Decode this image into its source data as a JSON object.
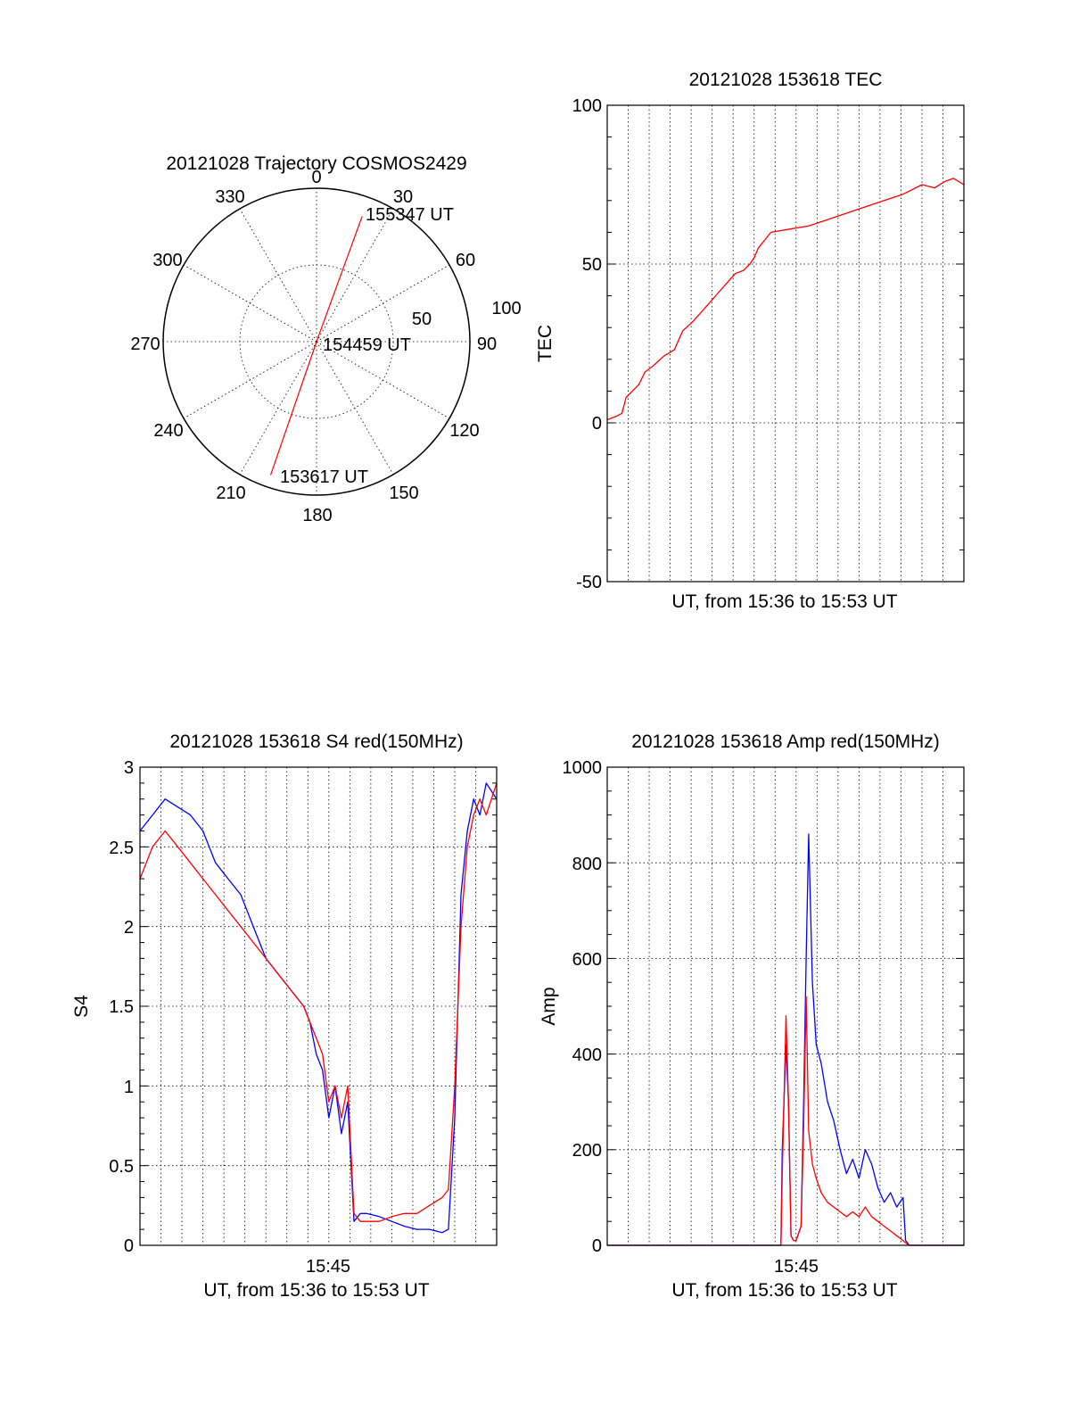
{
  "page": {
    "background": "#ffffff"
  },
  "chart_data": [
    {
      "type": "polar",
      "title": "20121028 Trajectory COSMOS2429",
      "azimuth_ticks": [
        "0",
        "30",
        "60",
        "90",
        "120",
        "150",
        "180",
        "210",
        "240",
        "270",
        "300",
        "330"
      ],
      "radial_ticks": [
        "50",
        "100"
      ],
      "radial_range": [
        0,
        100
      ],
      "grid": true,
      "series": [
        {
          "color": "#ff0000",
          "points": [
            {
              "azimuth": 199,
              "zenith": 92
            },
            {
              "azimuth": 19,
              "zenith": 0
            },
            {
              "azimuth": 20,
              "zenith": 87
            }
          ]
        }
      ],
      "annotations": [
        "155347 UT",
        "154459 UT",
        "153617 UT"
      ]
    },
    {
      "type": "line",
      "title": "20121028 153618 TEC",
      "ylabel": "TEC",
      "xlabel": "UT, from 15:36 to 15:53 UT",
      "xlim": [
        15.6,
        15.8833
      ],
      "ylim": [
        -50,
        100
      ],
      "yticks": [
        "-50",
        "0",
        "50",
        "100"
      ],
      "xticks": [],
      "grid": true,
      "series": [
        {
          "color": "#ff0000",
          "x": [
            15.6003,
            15.6067,
            15.6117,
            15.615,
            15.62,
            15.625,
            15.63,
            15.6367,
            15.645,
            15.6533,
            15.66,
            15.6683,
            15.675,
            15.6817,
            15.6883,
            15.695,
            15.7017,
            15.7083,
            15.7133,
            15.7167,
            15.72,
            15.73,
            15.745,
            15.76,
            15.775,
            15.79,
            15.805,
            15.82,
            15.835,
            15.85,
            15.86,
            15.8683,
            15.875,
            15.8833
          ],
          "values": [
            1,
            2,
            3,
            8,
            10,
            12,
            16,
            18,
            21,
            23,
            29,
            32,
            35,
            38,
            41,
            44,
            47,
            48,
            50,
            52,
            55,
            60,
            61,
            62,
            64,
            66,
            68,
            70,
            72,
            75,
            74,
            76,
            77,
            75
          ]
        }
      ]
    },
    {
      "type": "line",
      "title": "20121028 153618 S4 red(150MHz)",
      "ylabel": "S4",
      "xlabel": "UT, from 15:36 to 15:53 UT",
      "xlim": [
        15.6,
        15.8833
      ],
      "ylim": [
        0,
        3
      ],
      "yticks": [
        "0",
        "0.5",
        "1",
        "1.5",
        "2",
        "2.5",
        "3"
      ],
      "xticks": [
        {
          "x": 15.75,
          "label": "15:45"
        }
      ],
      "grid": true,
      "series": [
        {
          "color": "#0000ff",
          "x": [
            15.6,
            15.61,
            15.62,
            15.63,
            15.64,
            15.65,
            15.66,
            15.67,
            15.68,
            15.69,
            15.7,
            15.71,
            15.72,
            15.73,
            15.735,
            15.74,
            15.745,
            15.75,
            15.755,
            15.76,
            15.765,
            15.77,
            15.775,
            15.78,
            15.79,
            15.8,
            15.81,
            15.82,
            15.83,
            15.84,
            15.845,
            15.85,
            15.855,
            15.86,
            15.865,
            15.87,
            15.875,
            15.8833
          ],
          "values": [
            2.6,
            2.7,
            2.8,
            2.75,
            2.7,
            2.6,
            2.4,
            2.3,
            2.2,
            2.0,
            1.8,
            1.7,
            1.6,
            1.5,
            1.4,
            1.2,
            1.1,
            0.8,
            1.0,
            0.7,
            0.9,
            0.15,
            0.2,
            0.2,
            0.18,
            0.15,
            0.12,
            0.1,
            0.1,
            0.08,
            0.1,
            0.8,
            2.2,
            2.6,
            2.8,
            2.7,
            2.9,
            2.8
          ]
        },
        {
          "color": "#ff0000",
          "x": [
            15.6,
            15.61,
            15.62,
            15.63,
            15.64,
            15.65,
            15.66,
            15.67,
            15.68,
            15.69,
            15.7,
            15.71,
            15.72,
            15.73,
            15.735,
            15.74,
            15.745,
            15.75,
            15.755,
            15.76,
            15.765,
            15.77,
            15.775,
            15.78,
            15.79,
            15.8,
            15.81,
            15.82,
            15.83,
            15.84,
            15.845,
            15.85,
            15.855,
            15.86,
            15.865,
            15.87,
            15.875,
            15.8833
          ],
          "values": [
            2.3,
            2.5,
            2.6,
            2.5,
            2.4,
            2.3,
            2.2,
            2.1,
            2.0,
            1.9,
            1.8,
            1.7,
            1.6,
            1.5,
            1.4,
            1.3,
            1.2,
            0.9,
            1.0,
            0.8,
            1.0,
            0.2,
            0.15,
            0.15,
            0.15,
            0.18,
            0.2,
            0.2,
            0.25,
            0.3,
            0.35,
            1.0,
            2.0,
            2.5,
            2.7,
            2.8,
            2.7,
            2.9
          ]
        }
      ]
    },
    {
      "type": "line",
      "title": "20121028 153618 Amp red(150MHz)",
      "ylabel": "Amp",
      "xlabel": "UT, from 15:36 to 15:53 UT",
      "xlim": [
        15.6,
        15.8833
      ],
      "ylim": [
        0,
        1000
      ],
      "yticks": [
        "0",
        "200",
        "400",
        "600",
        "800",
        "1000"
      ],
      "xticks": [
        {
          "x": 15.75,
          "label": "15:45"
        }
      ],
      "grid": true,
      "series": [
        {
          "color": "#0000ff",
          "x": [
            15.6,
            15.7,
            15.738,
            15.739,
            15.742,
            15.744,
            15.746,
            15.748,
            15.75,
            15.754,
            15.756,
            15.758,
            15.76,
            15.763,
            15.766,
            15.77,
            15.775,
            15.78,
            15.785,
            15.79,
            15.795,
            15.8,
            15.805,
            15.81,
            15.815,
            15.82,
            15.825,
            15.83,
            15.835,
            15.837,
            15.84,
            15.8833
          ],
          "values": [
            0,
            0,
            0,
            200,
            420,
            300,
            20,
            10,
            10,
            40,
            300,
            600,
            860,
            550,
            420,
            380,
            300,
            260,
            200,
            150,
            180,
            140,
            200,
            170,
            120,
            90,
            110,
            80,
            100,
            10,
            0,
            0
          ]
        },
        {
          "color": "#ff0000",
          "x": [
            15.6,
            15.7,
            15.738,
            15.739,
            15.742,
            15.744,
            15.746,
            15.748,
            15.75,
            15.754,
            15.756,
            15.758,
            15.76,
            15.763,
            15.766,
            15.77,
            15.775,
            15.78,
            15.785,
            15.79,
            15.795,
            15.8,
            15.805,
            15.81,
            15.815,
            15.82,
            15.825,
            15.83,
            15.835,
            15.837,
            15.84,
            15.8833
          ],
          "values": [
            0,
            0,
            0,
            150,
            480,
            300,
            20,
            10,
            10,
            40,
            250,
            520,
            240,
            170,
            140,
            110,
            90,
            80,
            70,
            60,
            70,
            60,
            80,
            60,
            50,
            40,
            30,
            20,
            10,
            5,
            0,
            0
          ]
        }
      ]
    }
  ]
}
